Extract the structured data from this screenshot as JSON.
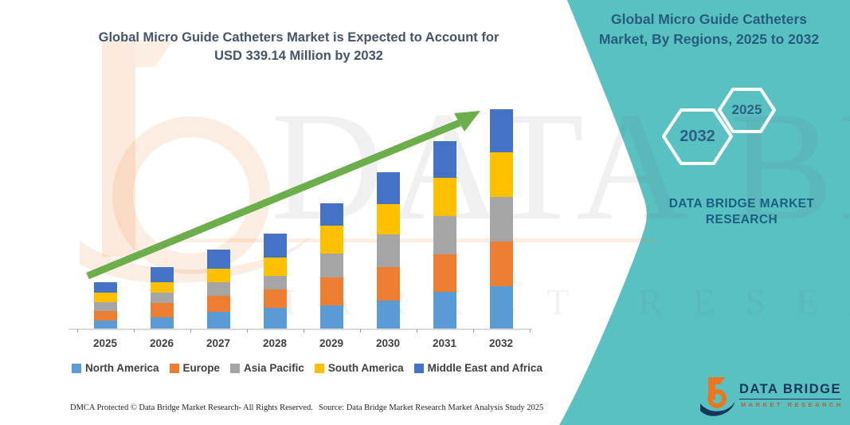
{
  "title": {
    "line1": "Global Micro Guide Catheters Market is Expected to Account for",
    "line2": "USD 339.14 Million by 2032"
  },
  "right_panel": {
    "heading_line1": "Global Micro Guide Catheters",
    "heading_line2": "Market, By Regions, 2025 to 2032",
    "hexagon_back_label": "2032",
    "hexagon_front_label": "2025",
    "brand_line1": "DATA BRIDGE MARKET",
    "brand_line2": "RESEARCH"
  },
  "logo": {
    "name": "DATA BRIDGE",
    "tagline": "MARKET RESEARCH"
  },
  "watermark": {
    "line1": "DATA BRIDGE",
    "line2": "MARKET RESEARCH"
  },
  "footer": {
    "dmca": "DMCA Protected © Data Bridge Market Research-  All Rights Reserved.",
    "source": "Source: Data Bridge Market Research  Market Analysis Study 2025"
  },
  "colors": {
    "teal_panel": "#5ac1c3",
    "title_text": "#44546a",
    "panel_text": "#265d7c",
    "arrow_green": "#6cae4b",
    "logo_navy": "#16365c",
    "logo_orange": "#e87722"
  },
  "chart_data": {
    "type": "bar",
    "stacked": true,
    "title": "Global Micro Guide Catheters Market is Expected to Account for USD 339.14 Million by 2032",
    "unit": "USD Million",
    "xlabel": "",
    "ylabel": "",
    "ylim": [
      0,
      360
    ],
    "gridlines": false,
    "legend_position": "bottom",
    "trend_arrow": true,
    "categories": [
      "2025",
      "2026",
      "2027",
      "2028",
      "2029",
      "2030",
      "2031",
      "2032"
    ],
    "series": [
      {
        "name": "North America",
        "color": "#5B9BD5",
        "values": [
          13.5,
          18.4,
          27.0,
          33.2,
          36.9,
          44.2,
          57.7,
          66.3
        ]
      },
      {
        "name": "Europe",
        "color": "#ED7D31",
        "values": [
          14.7,
          22.1,
          24.6,
          28.3,
          43.0,
          51.6,
          57.7,
          68.8
        ]
      },
      {
        "name": "Asia Pacific",
        "color": "#A5A5A5",
        "values": [
          13.5,
          16.0,
          20.9,
          20.9,
          36.9,
          50.4,
          59.0,
          68.8
        ]
      },
      {
        "name": "South America",
        "color": "#FFC000",
        "values": [
          14.7,
          16.0,
          20.9,
          28.3,
          43.0,
          46.7,
          59.0,
          68.8
        ]
      },
      {
        "name": "Middle East and Africa",
        "color": "#4472C4",
        "values": [
          16.0,
          23.3,
          29.5,
          36.9,
          34.4,
          49.1,
          56.5,
          66.4
        ]
      }
    ],
    "totals": [
      72.4,
      95.8,
      122.9,
      147.6,
      194.2,
      242.0,
      289.9,
      339.1
    ],
    "annotation": "USD 339.14 Million by 2032"
  }
}
